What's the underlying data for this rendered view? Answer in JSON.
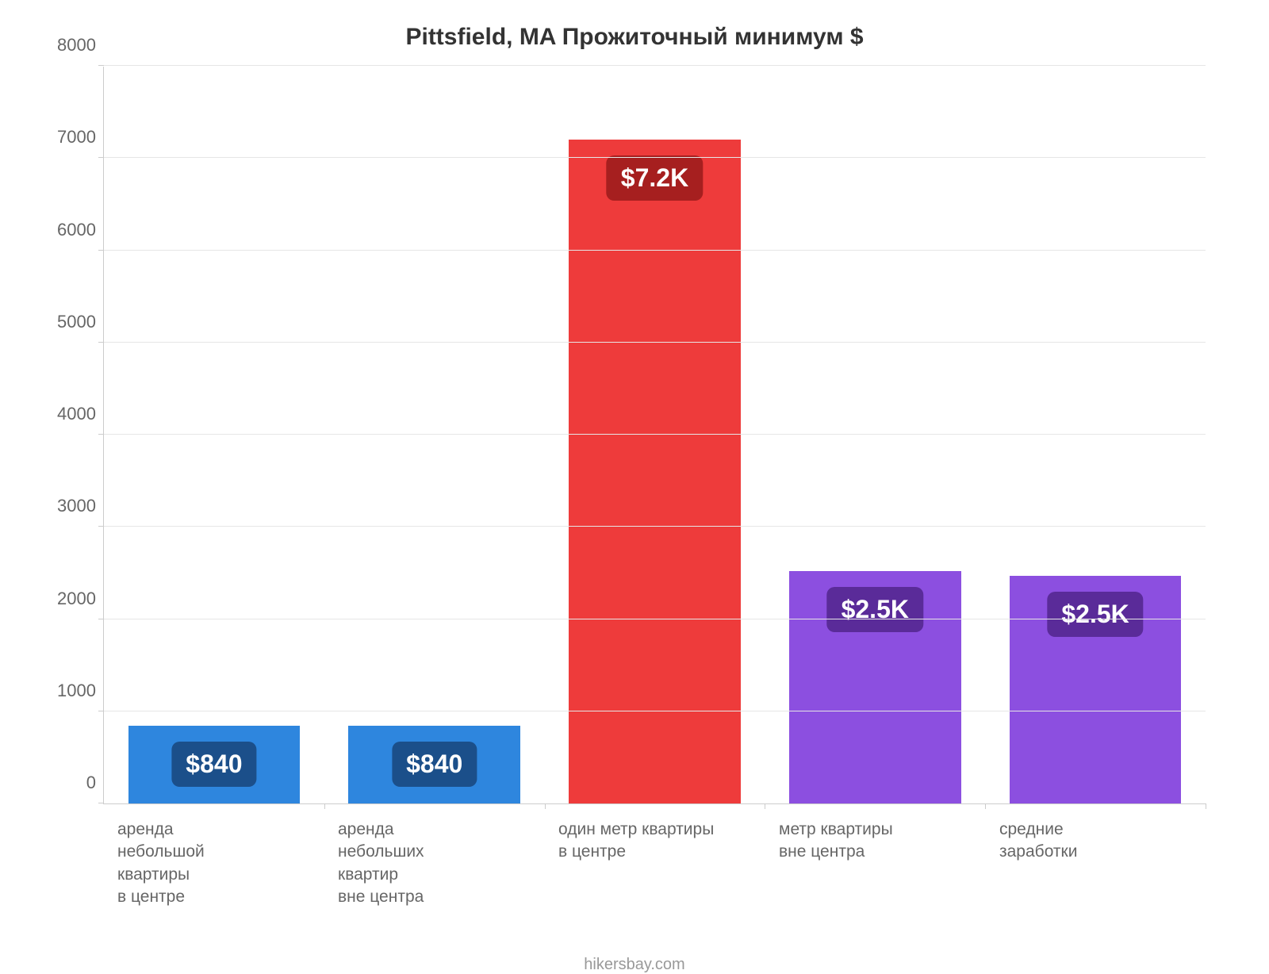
{
  "chart": {
    "type": "bar",
    "title": "Pittsfield, MA Прожиточный минимум $",
    "title_fontsize": 30,
    "title_color": "#333333",
    "background_color": "#ffffff",
    "y": {
      "min": 0,
      "max": 8000,
      "step": 1000,
      "ticks": [
        0,
        1000,
        2000,
        3000,
        4000,
        5000,
        6000,
        7000,
        8000
      ],
      "label_color": "#666666",
      "label_fontsize": 22,
      "grid_color": "#e6e6e6",
      "axis_color": "#cccccc"
    },
    "bars": [
      {
        "label": "аренда\nнебольшой\nквартиры\nв центре",
        "value": 840,
        "value_label": "$840",
        "fill": "#2e86de",
        "badge_bg": "#1b4f8a",
        "badge_text": "#ffffff"
      },
      {
        "label": "аренда\nнебольших\nквартир\nвне центра",
        "value": 840,
        "value_label": "$840",
        "fill": "#2e86de",
        "badge_bg": "#1b4f8a",
        "badge_text": "#ffffff"
      },
      {
        "label": "один метр квартиры\nв центре",
        "value": 7200,
        "value_label": "$7.2K",
        "fill": "#ee3b3b",
        "badge_bg": "#a61f1f",
        "badge_text": "#ffffff"
      },
      {
        "label": "метр квартиры\nвне центра",
        "value": 2520,
        "value_label": "$2.5K",
        "fill": "#8c4fe0",
        "badge_bg": "#5a2b99",
        "badge_text": "#ffffff"
      },
      {
        "label": "средние\nзаработки",
        "value": 2470,
        "value_label": "$2.5K",
        "fill": "#8c4fe0",
        "badge_bg": "#5a2b99",
        "badge_text": "#ffffff"
      }
    ],
    "xlabel_color": "#666666",
    "xlabel_fontsize": 21,
    "bar_width_ratio": 0.78,
    "footer": "hikersbay.com",
    "footer_color": "#999999",
    "footer_fontsize": 20
  }
}
